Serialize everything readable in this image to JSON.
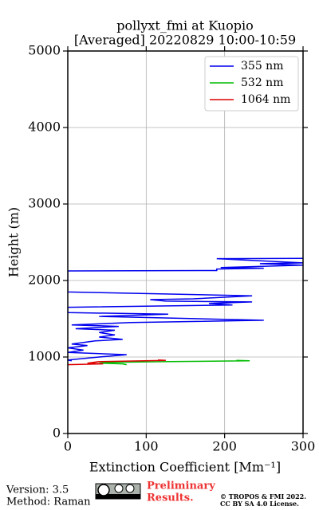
{
  "chart_data": {
    "type": "profile",
    "title": "pollyxt_fmi at Kuopio",
    "subtitle": "[Averaged] 20220829 10:00-10:59",
    "x_label": "Extinction Coefficient [Mm⁻¹]",
    "y_label": "Height (m)",
    "xlim": [
      0,
      300
    ],
    "xticks": [
      0,
      100,
      200,
      300
    ],
    "ylim": [
      0,
      5000
    ],
    "yticks": [
      0,
      1000,
      2000,
      3000,
      4000,
      5000
    ],
    "grid": true,
    "legend": "upper right",
    "series": [
      {
        "name": "355 nm",
        "color": "#0000ee",
        "heights": [
          2290,
          2285,
          2230,
          2220,
          2200,
          2170,
          2160,
          2150,
          2130,
          2125,
          1850,
          1800,
          1760,
          1750,
          1730,
          1720,
          1700,
          1680,
          1650,
          1580,
          1560,
          1530,
          1480,
          1450,
          1420,
          1400,
          1370,
          1350,
          1320,
          1290,
          1260,
          1230,
          1210,
          1170,
          1150,
          1120,
          1090,
          1060,
          1030,
          1000,
          980,
          960,
          950
        ],
        "values": [
          300,
          190,
          300,
          245,
          300,
          195,
          250,
          190,
          190,
          0,
          0,
          235,
          160,
          105,
          125,
          235,
          180,
          210,
          0,
          0,
          128,
          40,
          250,
          80,
          5,
          65,
          10,
          60,
          40,
          60,
          40,
          70,
          35,
          5,
          25,
          0,
          20,
          0,
          75,
          40,
          20,
          0,
          5
        ]
      },
      {
        "name": "532 nm",
        "color": "#00bb00",
        "heights": [
          955,
          950,
          940,
          930,
          920,
          910,
          900
        ],
        "values": [
          215,
          232,
          130,
          50,
          40,
          70,
          75
        ]
      },
      {
        "name": "1064 nm",
        "color": "#dd0000",
        "heights": [
          960,
          955,
          940,
          920,
          910,
          900
        ],
        "values": [
          115,
          125,
          40,
          25,
          45,
          0
        ]
      }
    ]
  },
  "footer": {
    "version": "Version: 3.5",
    "method": "Method: Raman",
    "status_1": "Preliminary",
    "status_2": "Results.",
    "copyright": "© TROPOS & FMI 2022.",
    "license": "CC BY SA 4.0 License."
  }
}
